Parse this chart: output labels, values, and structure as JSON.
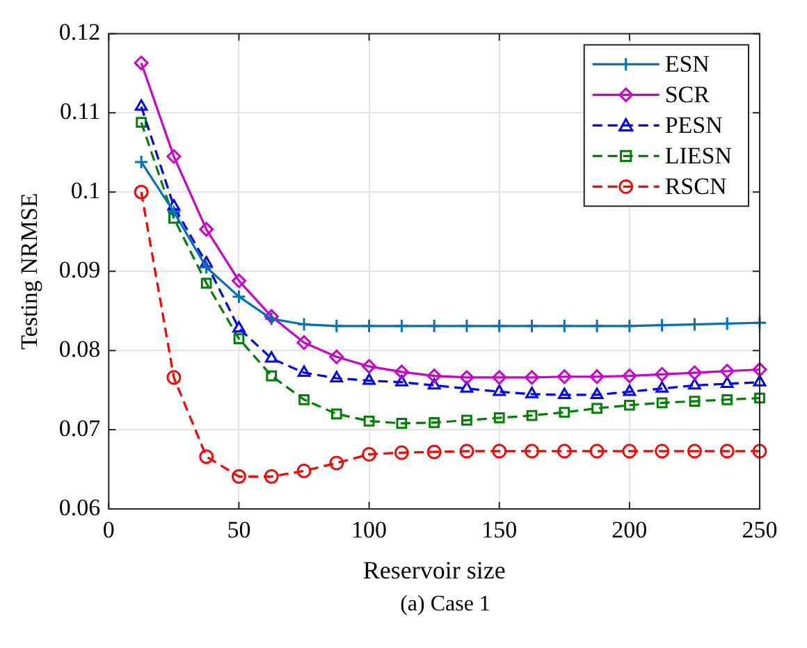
{
  "chart_data": {
    "type": "line",
    "xlabel": "Reservoir size",
    "ylabel": "Testing NRMSE",
    "x": [
      12.5,
      25,
      37.5,
      50,
      62.5,
      75,
      87.5,
      100,
      112.5,
      125,
      137.5,
      150,
      162.5,
      175,
      187.5,
      200,
      212.5,
      225,
      237.5,
      250
    ],
    "series": [
      {
        "name": "ESN",
        "color": "#0072bd",
        "marker": "cross",
        "line_style": "solid",
        "values": [
          0.1038,
          0.0975,
          0.0905,
          0.0868,
          0.084,
          0.0833,
          0.0831,
          0.0831,
          0.0831,
          0.0831,
          0.0831,
          0.0831,
          0.0831,
          0.0831,
          0.0831,
          0.0831,
          0.0832,
          0.0833,
          0.0834,
          0.0835
        ]
      },
      {
        "name": "SCR",
        "color": "#cc00cc",
        "marker": "diamond",
        "line_style": "solid",
        "values": [
          0.1163,
          0.1045,
          0.0953,
          0.0888,
          0.0843,
          0.081,
          0.0792,
          0.078,
          0.0773,
          0.0768,
          0.0766,
          0.0766,
          0.0766,
          0.0767,
          0.0767,
          0.0768,
          0.077,
          0.0772,
          0.0774,
          0.0776
        ]
      },
      {
        "name": "PESN",
        "color": "#0000ff",
        "marker": "triangle",
        "line_style": "dashed",
        "values": [
          0.1108,
          0.0982,
          0.091,
          0.0828,
          0.079,
          0.0772,
          0.0765,
          0.0762,
          0.076,
          0.0756,
          0.0752,
          0.0748,
          0.0745,
          0.0744,
          0.0744,
          0.0748,
          0.0752,
          0.0756,
          0.0758,
          0.076
        ]
      },
      {
        "name": "LIESN",
        "color": "#008000",
        "marker": "square",
        "line_style": "dashed",
        "values": [
          0.1088,
          0.0967,
          0.0885,
          0.0815,
          0.0768,
          0.0738,
          0.072,
          0.0711,
          0.0708,
          0.0709,
          0.0712,
          0.0715,
          0.0718,
          0.0722,
          0.0727,
          0.0731,
          0.0734,
          0.0736,
          0.0738,
          0.074
        ]
      },
      {
        "name": "RSCN",
        "color": "#ff0000",
        "marker": "circle",
        "line_style": "dashed",
        "values": [
          0.1,
          0.0766,
          0.0666,
          0.0641,
          0.0641,
          0.0648,
          0.0658,
          0.0669,
          0.0671,
          0.0672,
          0.0673,
          0.0673,
          0.0673,
          0.0673,
          0.0673,
          0.0673,
          0.0673,
          0.0673,
          0.0673,
          0.0673
        ]
      }
    ],
    "xlim": [
      0,
      250
    ],
    "xticks": [
      0,
      50,
      100,
      150,
      200,
      250
    ],
    "ylim": [
      0.06,
      0.12
    ],
    "yticks": [
      0.06,
      0.07,
      0.08,
      0.09,
      0.1,
      0.11,
      0.12
    ],
    "grid": true,
    "legend": "top right",
    "annotations": [
      "(a) Case 1"
    ]
  }
}
